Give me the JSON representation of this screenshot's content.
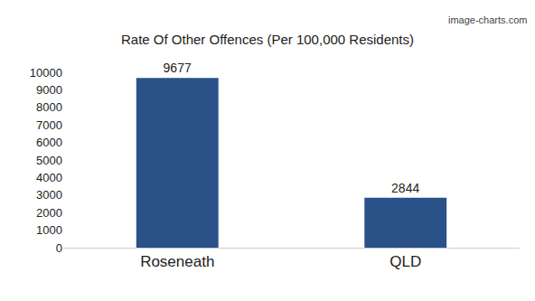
{
  "chart_data": {
    "type": "bar",
    "title": "Rate Of Other Offences (Per 100,000 Residents)",
    "categories": [
      "Roseneath",
      "QLD"
    ],
    "values": [
      9677,
      2844
    ],
    "color": "#2b5189",
    "ylim": [
      0,
      10000
    ],
    "yticks": [
      0,
      1000,
      2000,
      3000,
      4000,
      5000,
      6000,
      7000,
      8000,
      9000,
      10000
    ],
    "grid": false,
    "data_labels": true,
    "annotations": [
      "image-charts.com"
    ]
  }
}
